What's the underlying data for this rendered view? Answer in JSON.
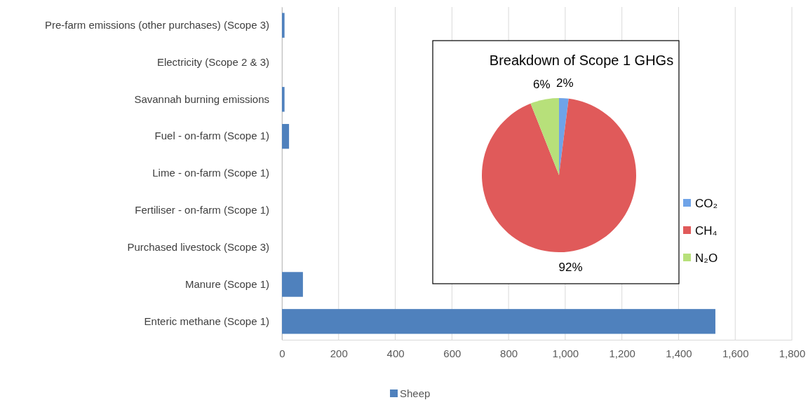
{
  "chart_data": [
    {
      "type": "bar",
      "orientation": "horizontal",
      "categories": [
        "Pre-farm emissions (other purchases) (Scope 3)",
        "Electricity (Scope 2 & 3)",
        "Savannah burning emissions",
        "Fuel - on-farm (Scope 1)",
        "Lime - on-farm (Scope 1)",
        "Fertiliser - on-farm (Scope 1)",
        "Purchased livestock (Scope 3)",
        "Manure (Scope 1)",
        "Enteric methane (Scope 1)"
      ],
      "series": [
        {
          "name": "Sheep",
          "color": "#4f81bd",
          "values": [
            9,
            0,
            9,
            25,
            0,
            0,
            0,
            74,
            1530
          ]
        }
      ],
      "xlim": [
        0,
        1800
      ],
      "xticks": [
        0,
        200,
        400,
        600,
        800,
        {
          "value": 1000,
          "label": "1,000"
        },
        {
          "value": 1200,
          "label": "1,200"
        },
        {
          "value": 1400,
          "label": "1,400"
        },
        {
          "value": 1600,
          "label": "1,600"
        },
        {
          "value": 1800,
          "label": "1,800"
        }
      ],
      "grid": "x",
      "legend": "bottom"
    },
    {
      "type": "pie",
      "title": "Breakdown of Scope 1 GHGs",
      "categories": [
        "CO₂",
        "CH₄",
        "N₂O"
      ],
      "values": [
        2,
        92,
        6
      ],
      "colors": [
        "#6fa3e8",
        "#e05a5a",
        "#b7e07a"
      ],
      "value_labels": [
        "2%",
        "92%",
        "6%"
      ],
      "legend": "bottom right"
    }
  ]
}
